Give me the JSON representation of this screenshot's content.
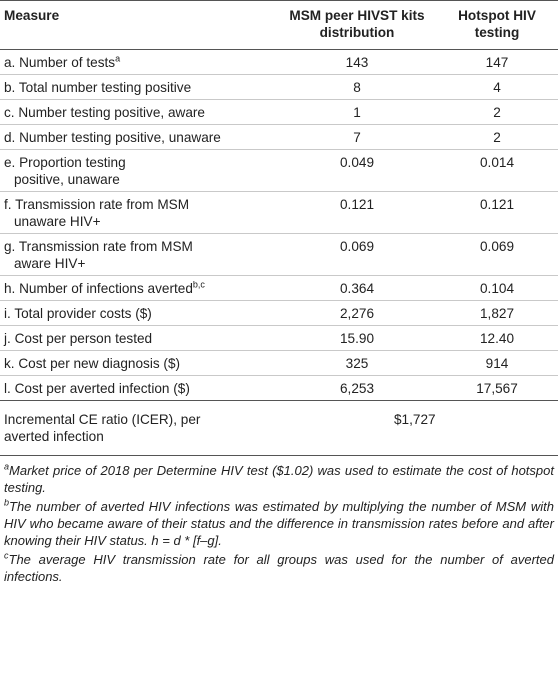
{
  "table": {
    "header": [
      "Measure",
      "MSM peer HIVST kits distribution",
      "Hotspot HIV testing"
    ],
    "rows": [
      {
        "label": [
          "a. Number of tests"
        ],
        "sup": "a",
        "values": [
          "143",
          "147"
        ]
      },
      {
        "label": [
          "b. Total number testing positive"
        ],
        "values": [
          "8",
          "4"
        ]
      },
      {
        "label": [
          "c. Number testing positive, aware"
        ],
        "values": [
          "1",
          "2"
        ]
      },
      {
        "label": [
          "d. Number testing positive, unaware"
        ],
        "values": [
          "7",
          "2"
        ]
      },
      {
        "label": [
          "e. Proportion testing",
          "positive, unaware"
        ],
        "values": [
          "0.049",
          "0.014"
        ]
      },
      {
        "label": [
          "f. Transmission rate from MSM",
          "unaware HIV+"
        ],
        "values": [
          "0.121",
          "0.121"
        ]
      },
      {
        "label": [
          "g. Transmission rate from MSM",
          "aware HIV+"
        ],
        "values": [
          "0.069",
          "0.069"
        ]
      },
      {
        "label": [
          "h. Number of infections averted"
        ],
        "sup": "b,c",
        "values": [
          "0.364",
          "0.104"
        ]
      },
      {
        "label": [
          "i. Total provider costs ($)"
        ],
        "values": [
          "2,276",
          "1,827"
        ]
      },
      {
        "label": [
          "j. Cost per person tested"
        ],
        "values": [
          "15.90",
          "12.40"
        ]
      },
      {
        "label": [
          "k. Cost per new diagnosis ($)"
        ],
        "values": [
          "325",
          "914"
        ]
      },
      {
        "label": [
          "l. Cost per averted infection ($)"
        ],
        "values": [
          "6,253",
          "17,567"
        ]
      }
    ],
    "icer": {
      "label": [
        "Incremental CE ratio (ICER), per",
        "averted infection"
      ],
      "value": "$1,727"
    }
  },
  "footnotes": [
    {
      "mark": "a",
      "text": "Market price of 2018 per Determine HIV test ($1.02) was used to estimate the cost of hotspot testing."
    },
    {
      "mark": "b",
      "text": "The number of averted HIV infections was estimated by multiplying the number of MSM with HIV who became aware of their status and the difference in transmission rates before and after knowing their HIV status. h = d * [f–g]."
    },
    {
      "mark": "c",
      "text": "The average HIV transmission rate for all groups was used for the number of averted infections."
    }
  ]
}
